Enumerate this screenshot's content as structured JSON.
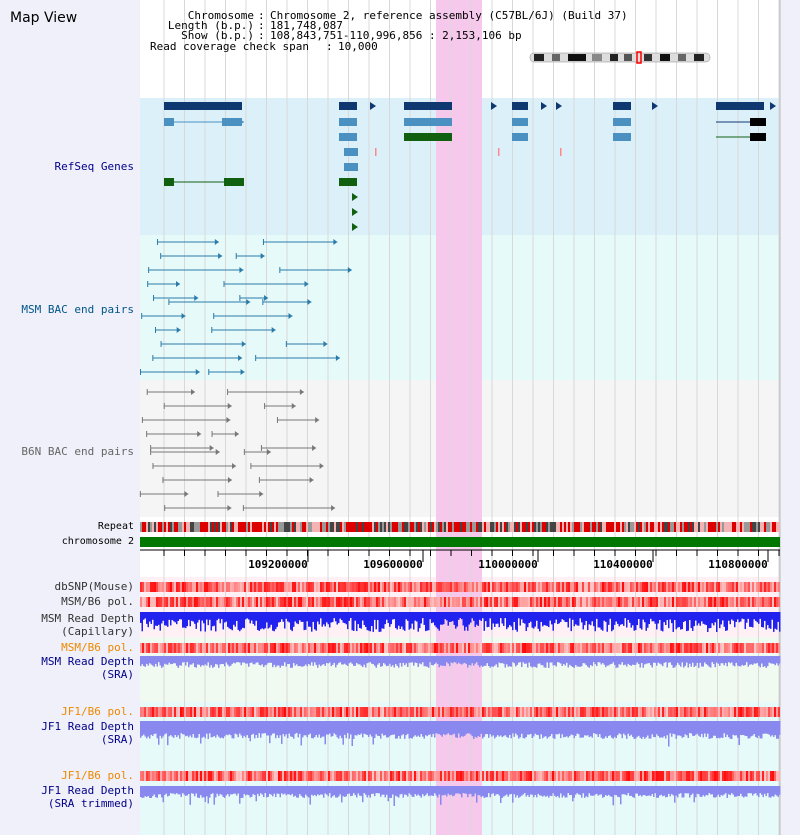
{
  "title": "Map View",
  "header": {
    "rows": [
      {
        "key": "Chromosome",
        "value": "Chromosome 2, reference assembly (C57BL/6J) (Build 37)"
      },
      {
        "key": "Length (b.p.)",
        "value": "181,748,087"
      },
      {
        "key": "Show (b.p.)",
        "value": "108,843,751-110,996,856 : 2,153,106 bp"
      },
      {
        "key": "Read coverage check span",
        "value": "10,000"
      }
    ]
  },
  "tracks": {
    "refseq": "RefSeq Genes",
    "msm_bac": "MSM BAC end pairs",
    "b6n_bac": "B6N BAC end pairs",
    "repeat": "Repeat",
    "chromosome": "chromosome 2",
    "dbsnp": "dbSNP(Mouse)",
    "msm_b6_pol_cap": "MSM/B6 pol.",
    "msm_depth_cap_1": "MSM Read Depth",
    "msm_depth_cap_2": "(Capillary)",
    "msm_b6_pol_sra": "MSM/B6 pol.",
    "msm_depth_sra_1": "MSM Read Depth",
    "msm_depth_sra_2": "(SRA)",
    "jf1_b6_pol_sra": "JF1/B6 pol.",
    "jf1_depth_sra_1": "JF1 Read Depth",
    "jf1_depth_sra_2": "(SRA)",
    "jf1_b6_pol_trim": "JF1/B6 pol.",
    "jf1_depth_trim_1": "JF1 Read Depth",
    "jf1_depth_trim_2": "(SRA trimmed)"
  },
  "ruler": {
    "ticks": [
      "109200000",
      "109600000",
      "110000000",
      "110400000",
      "110800000"
    ]
  },
  "colors": {
    "refseq_label": "#000088",
    "msm_label": "#005588",
    "b6n_label": "#666666",
    "pol_orange": "#ee8800",
    "depth_blue": "#000088",
    "highlight": "#f5c8ec",
    "chromosome_bar": "#007700",
    "capillary_depth": "#2222ee",
    "sra_depth": "#8888ee"
  }
}
